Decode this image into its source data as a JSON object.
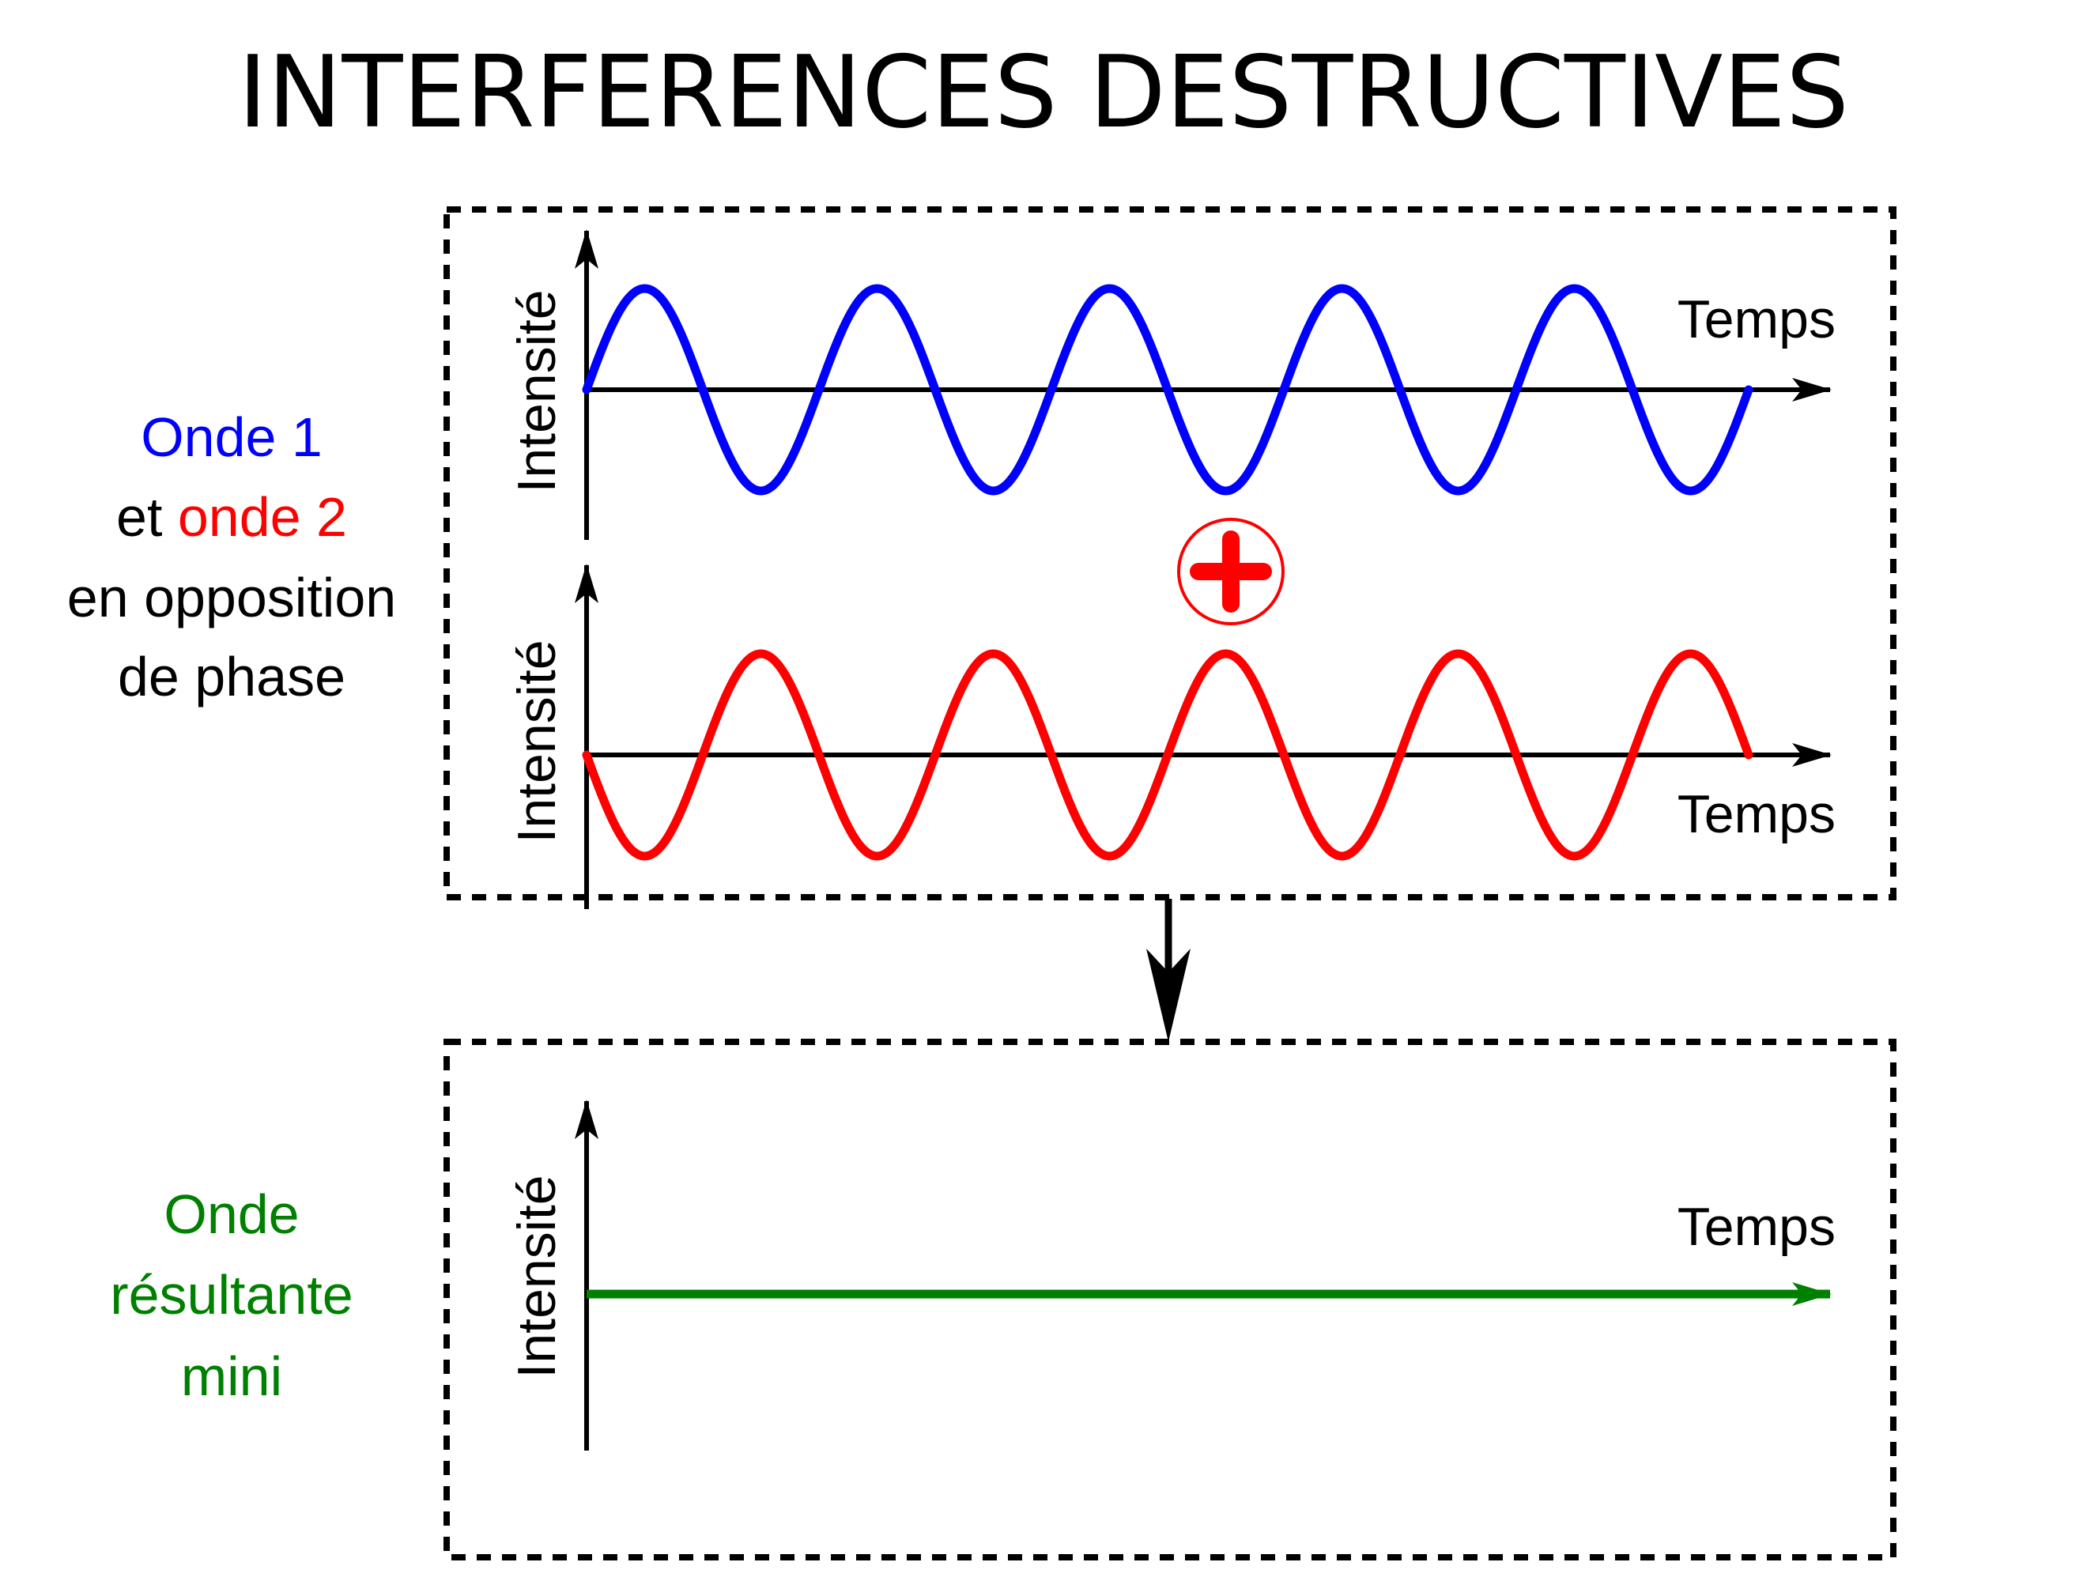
{
  "title": "INTERFERENCES DESTRUCTIVES",
  "colors": {
    "wave1": "#0000ff",
    "wave2": "#ff0000",
    "result": "#008000",
    "plus": "#ff0000",
    "axis": "#000000"
  },
  "left_labels": {
    "wave1": "Onde 1",
    "conjunction": "et",
    "wave2": "onde 2",
    "phase_line1": "en opposition",
    "phase_line2": "de phase",
    "result_line1": "Onde",
    "result_line2": "résultante",
    "result_line3": "mini"
  },
  "plots": {
    "wave1": {
      "ylabel": "Intensité",
      "xlabel": "Temps",
      "periods": 5,
      "phase": "0"
    },
    "wave2": {
      "ylabel": "Intensité",
      "xlabel": "Temps",
      "periods": 5,
      "phase": "pi"
    },
    "result": {
      "ylabel": "Intensité",
      "xlabel": "Temps",
      "amplitude": 0
    }
  },
  "operator_icon": "plus-circle-icon",
  "arrow_icon": "down-arrow-icon"
}
